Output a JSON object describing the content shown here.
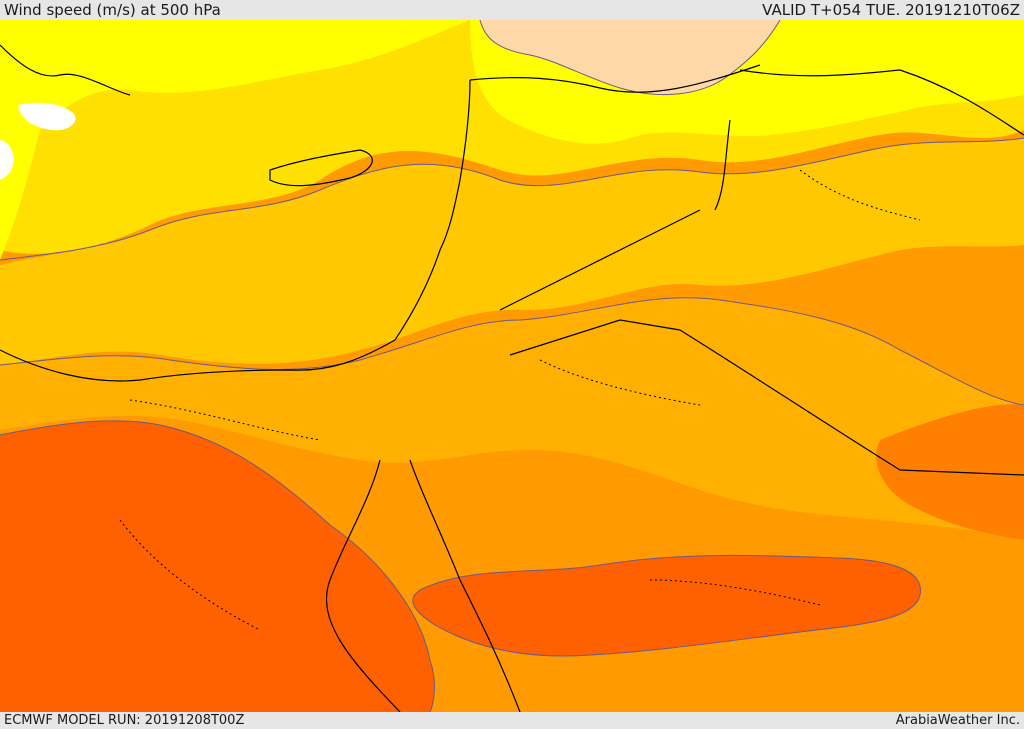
{
  "header": {
    "title": "Wind speed (m/s) at 500 hPa",
    "valid": "VALID T+054 TUE. 20191210T06Z"
  },
  "footer": {
    "model_run": "ECMWF MODEL RUN: 20191208T00Z",
    "credit": "ArabiaWeather Inc."
  },
  "map": {
    "field": "wind speed at 500 hPa",
    "colors": {
      "very_low": "#ffffff",
      "low_a": "#ffd8a8",
      "low_b": "#ffff00",
      "mid_a": "#ffe000",
      "mid_b": "#ffc800",
      "mid_c": "#ffb000",
      "high_a": "#ff9a00",
      "high_b": "#ff8000",
      "highest": "#ff6000"
    }
  }
}
